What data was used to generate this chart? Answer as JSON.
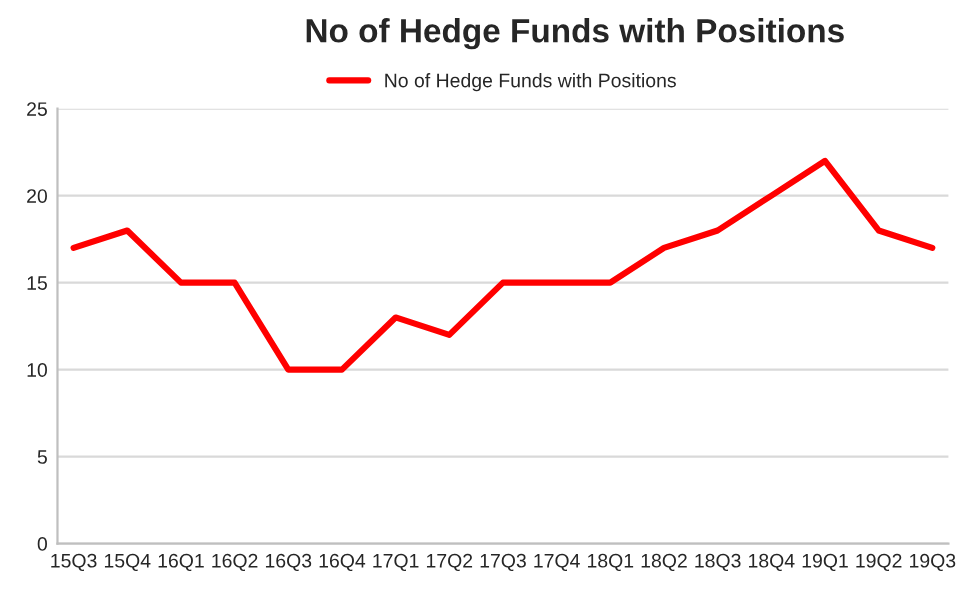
{
  "chart_data": {
    "type": "line",
    "title": "No of Hedge Funds with Positions",
    "categories": [
      "15Q3",
      "15Q4",
      "16Q1",
      "16Q2",
      "16Q3",
      "16Q4",
      "17Q1",
      "17Q2",
      "17Q3",
      "17Q4",
      "18Q1",
      "18Q2",
      "18Q3",
      "18Q4",
      "19Q1",
      "19Q2",
      "19Q3"
    ],
    "series": [
      {
        "name": "No of Hedge Funds with Positions",
        "color": "#ff0000",
        "values": [
          17,
          18,
          15,
          15,
          10,
          10,
          13,
          12,
          15,
          15,
          15,
          17,
          18,
          20,
          22,
          18,
          17
        ]
      }
    ],
    "ylim": [
      0,
      25
    ],
    "yticks": [
      0,
      5,
      10,
      15,
      20,
      25
    ],
    "grid": "y",
    "legend": "top",
    "marker": "none",
    "line_style": "solid"
  }
}
